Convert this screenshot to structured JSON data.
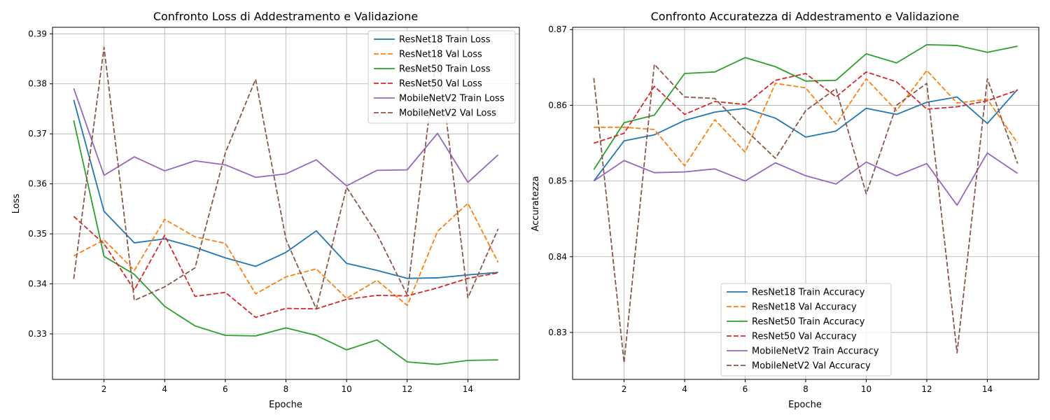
{
  "chart_data": [
    {
      "type": "line",
      "title": "Confronto Loss di Addestramento e Validazione",
      "xlabel": "Epoche",
      "ylabel": "Loss",
      "x": [
        1,
        2,
        3,
        4,
        5,
        6,
        7,
        8,
        9,
        10,
        11,
        12,
        13,
        14,
        15
      ],
      "xlim": [
        0.3,
        15.7
      ],
      "ylim": [
        0.3209,
        0.3913
      ],
      "xticks": [
        2,
        4,
        6,
        8,
        10,
        12,
        14
      ],
      "yticks": [
        0.33,
        0.34,
        0.35,
        0.36,
        0.37,
        0.38,
        0.39
      ],
      "grid": true,
      "legend_position": "upper right",
      "series": [
        {
          "name": "ResNet18 Train Loss",
          "color": "#1f77b4",
          "dash": "solid",
          "values": [
            0.3768,
            0.3545,
            0.3482,
            0.349,
            0.3473,
            0.3452,
            0.3435,
            0.3463,
            0.3506,
            0.3441,
            0.3427,
            0.3411,
            0.3412,
            0.3418,
            0.3423
          ]
        },
        {
          "name": "ResNet18 Val Loss",
          "color": "#ff7f0e",
          "dash": "dashed",
          "values": [
            0.3456,
            0.3488,
            0.3427,
            0.3529,
            0.3494,
            0.3481,
            0.338,
            0.3414,
            0.343,
            0.3371,
            0.3407,
            0.3357,
            0.3505,
            0.3561,
            0.3443
          ]
        },
        {
          "name": "ResNet50 Train Loss",
          "color": "#2ca02c",
          "dash": "solid",
          "values": [
            0.3727,
            0.3455,
            0.3419,
            0.3355,
            0.3316,
            0.3297,
            0.3296,
            0.3312,
            0.3297,
            0.3268,
            0.3288,
            0.3244,
            0.3239,
            0.3247,
            0.3248
          ]
        },
        {
          "name": "ResNet50 Val Loss",
          "color": "#d62728",
          "dash": "dashed",
          "values": [
            0.3535,
            0.348,
            0.3388,
            0.3497,
            0.3375,
            0.3383,
            0.3333,
            0.3351,
            0.335,
            0.3369,
            0.3377,
            0.3376,
            0.3392,
            0.3411,
            0.3422
          ]
        },
        {
          "name": "MobileNetV2 Train Loss",
          "color": "#9467bd",
          "dash": "solid",
          "values": [
            0.3791,
            0.3617,
            0.3654,
            0.3626,
            0.3646,
            0.3638,
            0.3613,
            0.362,
            0.3648,
            0.3596,
            0.3627,
            0.3628,
            0.3701,
            0.3603,
            0.3658
          ]
        },
        {
          "name": "MobileNetV2 Val Loss",
          "color": "#8c564b",
          "dash": "dashed",
          "values": [
            0.341,
            0.3873,
            0.3367,
            0.3394,
            0.3432,
            0.3662,
            0.3809,
            0.3489,
            0.335,
            0.3593,
            0.35,
            0.3378,
            0.3875,
            0.3372,
            0.351
          ]
        }
      ]
    },
    {
      "type": "line",
      "title": "Confronto Accuratezza di Addestramento e Validazione",
      "xlabel": "Epoche",
      "ylabel": "Accuratezza",
      "x": [
        1,
        2,
        3,
        4,
        5,
        6,
        7,
        8,
        9,
        10,
        11,
        12,
        13,
        14,
        15
      ],
      "xlim": [
        0.3,
        15.7
      ],
      "ylim": [
        0.8238,
        0.8703
      ],
      "xticks": [
        2,
        4,
        6,
        8,
        10,
        12,
        14
      ],
      "yticks": [
        0.83,
        0.84,
        0.85,
        0.86,
        0.87
      ],
      "grid": true,
      "legend_position": "lower center",
      "series": [
        {
          "name": "ResNet18 Train Accuracy",
          "color": "#1f77b4",
          "dash": "solid",
          "values": [
            0.85,
            0.8553,
            0.8561,
            0.858,
            0.8591,
            0.8596,
            0.8583,
            0.8558,
            0.8566,
            0.8596,
            0.8588,
            0.8604,
            0.8611,
            0.8576,
            0.8621
          ]
        },
        {
          "name": "ResNet18 Val Accuracy",
          "color": "#ff7f0e",
          "dash": "dashed",
          "values": [
            0.8571,
            0.8571,
            0.8568,
            0.852,
            0.8581,
            0.8538,
            0.8629,
            0.8623,
            0.8575,
            0.8635,
            0.8593,
            0.8646,
            0.8603,
            0.8608,
            0.855
          ]
        },
        {
          "name": "ResNet50 Train Accuracy",
          "color": "#2ca02c",
          "dash": "solid",
          "values": [
            0.8515,
            0.8577,
            0.8587,
            0.8642,
            0.8644,
            0.8663,
            0.8651,
            0.8632,
            0.8633,
            0.8668,
            0.8656,
            0.868,
            0.8679,
            0.867,
            0.8678
          ]
        },
        {
          "name": "ResNet50 Val Accuracy",
          "color": "#d62728",
          "dash": "dashed",
          "values": [
            0.855,
            0.8563,
            0.8625,
            0.8588,
            0.8605,
            0.8601,
            0.8633,
            0.8642,
            0.8611,
            0.8644,
            0.8631,
            0.8595,
            0.8598,
            0.8606,
            0.862
          ]
        },
        {
          "name": "MobileNetV2 Train Accuracy",
          "color": "#9467bd",
          "dash": "solid",
          "values": [
            0.85,
            0.8527,
            0.8511,
            0.8512,
            0.8516,
            0.85,
            0.8524,
            0.8507,
            0.8496,
            0.8525,
            0.8507,
            0.8523,
            0.8468,
            0.8537,
            0.851
          ]
        },
        {
          "name": "MobileNetV2 Val Accuracy",
          "color": "#8c564b",
          "dash": "dashed",
          "values": [
            0.8636,
            0.826,
            0.8654,
            0.8611,
            0.8609,
            0.8568,
            0.853,
            0.8593,
            0.8622,
            0.8483,
            0.86,
            0.8629,
            0.8273,
            0.8635,
            0.8523
          ]
        }
      ]
    }
  ]
}
